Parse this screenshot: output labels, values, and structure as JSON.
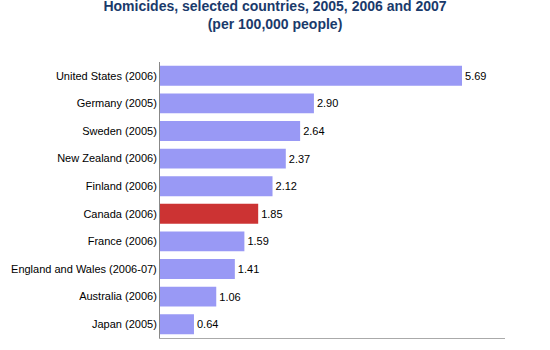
{
  "chart_data": {
    "type": "bar",
    "title": "Homicides, selected countries, 2005, 2006 and 2007",
    "subtitle": "(per 100,000 people)",
    "orientation": "horizontal",
    "categories": [
      "United States (2006)",
      "Germany (2005)",
      "Sweden (2005)",
      "New Zealand (2006)",
      "Finland (2006)",
      "Canada (2006)",
      "France (2006)",
      "England and Wales (2006-07)",
      "Australia (2006)",
      "Japan (2005)"
    ],
    "values": [
      5.69,
      2.9,
      2.64,
      2.37,
      2.12,
      1.85,
      1.59,
      1.41,
      1.06,
      0.64
    ],
    "value_labels": [
      "5.69",
      "2.90",
      "2.64",
      "2.37",
      "2.12",
      "1.85",
      "1.59",
      "1.41",
      "1.06",
      "0.64"
    ],
    "colors": [
      "#9999f5",
      "#9999f5",
      "#9999f5",
      "#9999f5",
      "#9999f5",
      "#cc3333",
      "#9999f5",
      "#9999f5",
      "#9999f5",
      "#9999f5"
    ],
    "data_labels": true,
    "xlim": [
      0,
      6.5
    ],
    "xticks": [],
    "tick_labels": "y",
    "grid": false
  }
}
